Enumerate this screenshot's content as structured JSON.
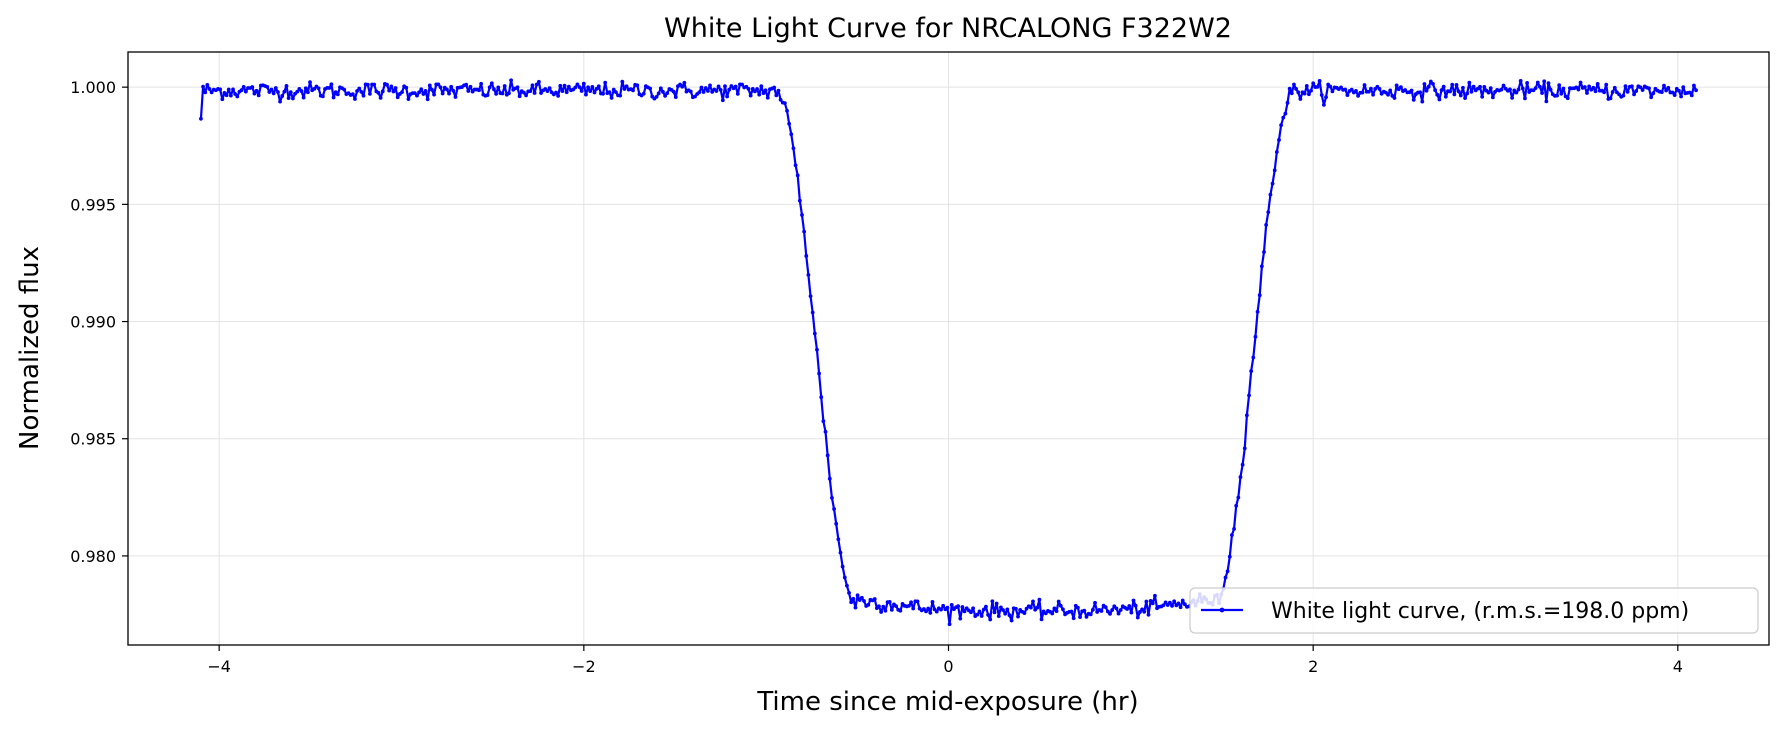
{
  "chart_data": {
    "type": "line",
    "title": "White Light Curve for NRCALONG F322W2",
    "xlabel": "Time since mid-exposure (hr)",
    "ylabel": "Normalized flux",
    "xlim": [
      -4.5,
      4.5
    ],
    "ylim": [
      0.9762,
      1.0015
    ],
    "xticks": [
      -4,
      -2,
      0,
      2,
      4
    ],
    "xtick_labels": [
      "−4",
      "−2",
      "0",
      "2",
      "4"
    ],
    "yticks": [
      0.98,
      0.985,
      0.99,
      0.995,
      1.0
    ],
    "ytick_labels": [
      "0.980",
      "0.985",
      "0.990",
      "0.995",
      "1.000"
    ],
    "grid": true,
    "legend_position": "lower-right",
    "series": [
      {
        "name": "White light curve, (r.m.s.=198.0 ppm)",
        "color": "#0000ff",
        "marker": "dot",
        "x_start": -4.1,
        "x_end": 4.1,
        "n_points": 700,
        "noise_rms_ppm": 198.0,
        "baseline_flux": 0.99985,
        "in_transit_flux": 0.9779,
        "ingress_start": -0.95,
        "ingress_end": -0.5,
        "egress_start": 1.45,
        "egress_end": 1.9
      }
    ]
  }
}
